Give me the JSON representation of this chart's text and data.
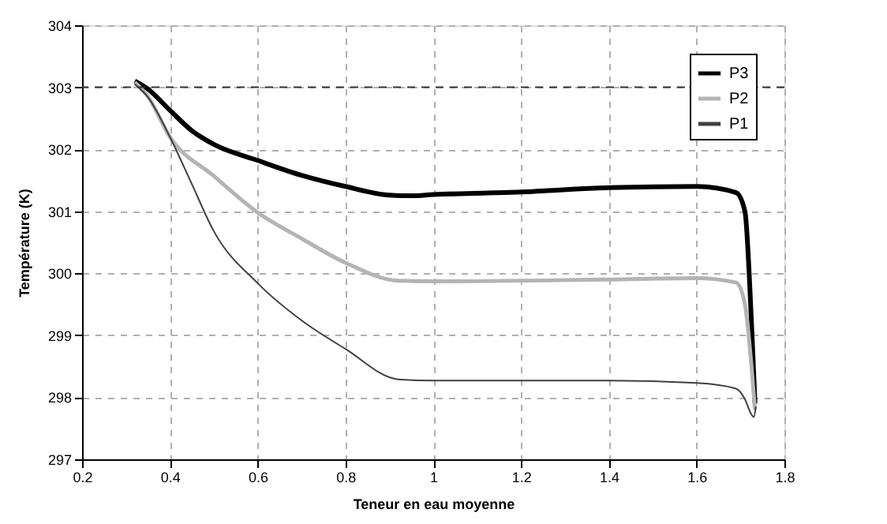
{
  "chart_data": {
    "type": "line",
    "xlabel": "Teneur en eau moyenne",
    "ylabel": "Température  (K)",
    "xlim": [
      0.2,
      1.8
    ],
    "xticks": [
      0.2,
      0.4,
      0.6,
      0.8,
      1,
      1.2,
      1.4,
      1.6,
      1.8
    ],
    "ylim": [
      297,
      304
    ],
    "yticks": [
      297,
      298,
      299,
      300,
      301,
      302,
      303,
      304
    ],
    "grid": true,
    "legend": "top right",
    "marker": "none",
    "line_style": "solid",
    "ref_lines": [
      {
        "axis": "y",
        "value": 303,
        "color": "#333333",
        "line_style": "dashed"
      }
    ],
    "series": [
      {
        "name": "P3",
        "color": "#000000",
        "x": [
          0.32,
          0.35,
          0.4,
          0.45,
          0.5,
          0.6,
          0.7,
          0.8,
          0.9,
          0.95,
          1.0,
          1.2,
          1.4,
          1.6,
          1.69,
          1.71,
          1.725,
          1.733
        ],
        "values": [
          303.1,
          302.97,
          302.63,
          302.3,
          302.08,
          301.82,
          301.58,
          301.4,
          301.26,
          301.25,
          301.27,
          301.31,
          301.38,
          301.4,
          301.3,
          301.0,
          299.2,
          297.9
        ]
      },
      {
        "name": "P2",
        "color": "#b4b4b4",
        "x": [
          0.32,
          0.35,
          0.4,
          0.5,
          0.6,
          0.7,
          0.8,
          0.92,
          1.0,
          1.4,
          1.6,
          1.69,
          1.71,
          1.725,
          1.733
        ],
        "values": [
          303.08,
          302.85,
          302.2,
          301.57,
          300.98,
          300.56,
          300.17,
          299.88,
          299.87,
          299.9,
          299.92,
          299.85,
          299.5,
          298.5,
          297.8
        ]
      },
      {
        "name": "P1",
        "color": "#404040",
        "x": [
          0.32,
          0.35,
          0.4,
          0.45,
          0.5,
          0.6,
          0.7,
          0.8,
          0.92,
          1.0,
          1.4,
          1.6,
          1.69,
          1.71,
          1.725,
          1.73,
          1.735
        ],
        "values": [
          303.05,
          302.84,
          302.2,
          301.44,
          300.68,
          299.84,
          299.24,
          298.78,
          298.29,
          298.27,
          298.27,
          298.23,
          298.14,
          297.97,
          297.72,
          297.68,
          297.85
        ]
      }
    ]
  }
}
